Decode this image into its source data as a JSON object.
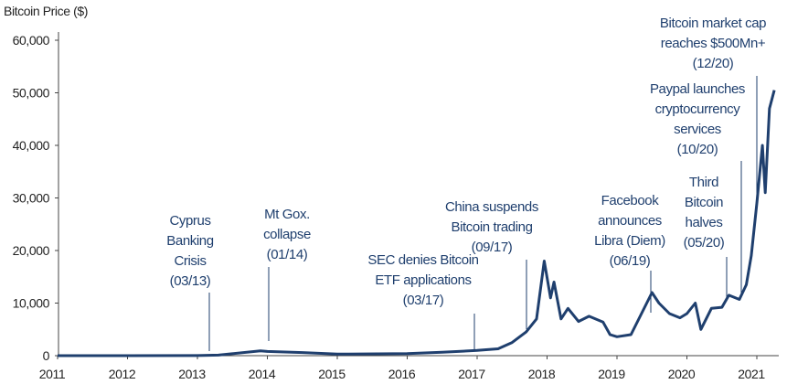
{
  "chart_data": {
    "type": "line",
    "title": "Bitcoin Price ($)",
    "x": [
      2011,
      2012,
      2013,
      2013.3,
      2013.9,
      2014.0,
      2014.5,
      2015,
      2016,
      2016.5,
      2017,
      2017.3,
      2017.5,
      2017.7,
      2017.85,
      2017.96,
      2018.05,
      2018.1,
      2018.2,
      2018.3,
      2018.45,
      2018.6,
      2018.8,
      2018.9,
      2019.0,
      2019.2,
      2019.35,
      2019.5,
      2019.6,
      2019.75,
      2019.9,
      2020.0,
      2020.12,
      2020.2,
      2020.35,
      2020.5,
      2020.6,
      2020.75,
      2020.85,
      2020.92,
      2021.0,
      2021.08,
      2021.12,
      2021.18,
      2021.25
    ],
    "values": [
      0,
      5,
      13,
      100,
      900,
      800,
      600,
      300,
      400,
      650,
      1000,
      1300,
      2500,
      4500,
      7000,
      18000,
      11000,
      14000,
      7000,
      9000,
      6500,
      7500,
      6400,
      4000,
      3600,
      4000,
      8000,
      12000,
      10000,
      8000,
      7200,
      8000,
      10000,
      5000,
      9000,
      9200,
      11500,
      10700,
      13500,
      19000,
      29000,
      40000,
      31000,
      47000,
      50500
    ],
    "color": "#1f3f6e",
    "xlim": [
      2011,
      2021.35
    ],
    "xticks": [
      2011,
      2012,
      2013,
      2014,
      2015,
      2016,
      2017,
      2018,
      2019,
      2020,
      2021
    ],
    "ylim": [
      0,
      60000
    ],
    "yticks": [
      {
        "value": 0,
        "label": "0"
      },
      {
        "value": 10000,
        "label": "10,000"
      },
      {
        "value": 20000,
        "label": "20,000"
      },
      {
        "value": 30000,
        "label": "30,000"
      },
      {
        "value": 40000,
        "label": "40,000"
      },
      {
        "value": 50000,
        "label": "50,000"
      },
      {
        "value": 60000,
        "label": "60,000"
      }
    ],
    "annotations": [
      [
        "Cyprus",
        "Banking",
        "Crisis",
        "(03/13)"
      ],
      [
        "Mt Gox.",
        "collapse",
        "(01/14)"
      ],
      [
        "SEC denies Bitcoin",
        "ETF applications",
        "(03/17)"
      ],
      [
        "China suspends",
        "Bitcoin trading",
        "(09/17)"
      ],
      [
        "Facebook",
        "announces",
        "Libra (Diem)",
        "(06/19)"
      ],
      [
        "Third",
        "Bitcoin",
        "halves",
        "(05/20)"
      ],
      [
        "Paypal launches",
        "cryptocurrency",
        "services",
        "(10/20)"
      ],
      [
        "Bitcoin market cap",
        "reaches $500Mn+",
        "(12/20)"
      ]
    ]
  }
}
